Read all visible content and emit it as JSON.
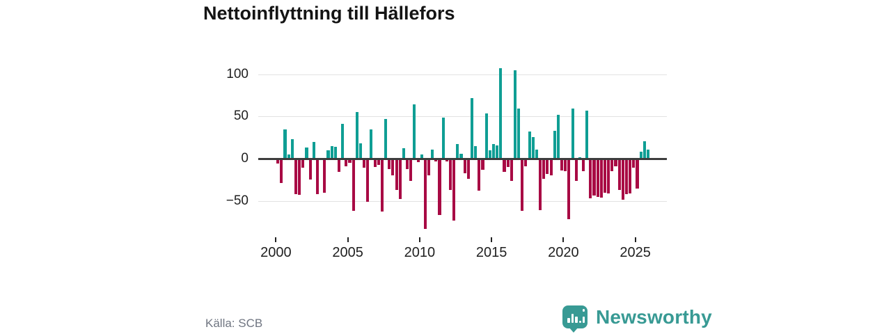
{
  "title": "Nettoinflyttning till Hällefors",
  "source": "Källa: SCB",
  "branding": {
    "logo_text": "Newsworthy",
    "brand_color": "#389a94"
  },
  "colors": {
    "positive": "#0f9e94",
    "negative": "#a80a44",
    "grid": "#e2e2e2",
    "zero_line": "#3d3d3d",
    "title_text": "#141414",
    "axis_text": "#1f1f1f",
    "source_text": "#6f7581"
  },
  "chart_data": {
    "type": "bar",
    "title": "Nettoinflyttning till Hällefors",
    "frequency": "quarterly",
    "x_start": {
      "year": 2000,
      "quarter": 1
    },
    "x_tick_labels": [
      "2000",
      "2005",
      "2010",
      "2015",
      "2020",
      "2025"
    ],
    "y_ticks": [
      100,
      50,
      0,
      -50
    ],
    "y_tick_labels": [
      "100",
      "50",
      "0",
      "−50"
    ],
    "ylim": [
      -90,
      115
    ],
    "grid": true,
    "legend": "none",
    "positive_color_meaning": "net in-migration (teal)",
    "negative_color_meaning": "net out-migration (crimson)",
    "values": [
      -6,
      -29,
      35,
      5,
      23,
      -42,
      -43,
      -11,
      13,
      -25,
      20,
      -42,
      1,
      -40,
      10,
      15,
      14,
      -16,
      41,
      -9,
      -5,
      -62,
      55,
      18,
      -11,
      -51,
      35,
      -10,
      -7,
      -63,
      47,
      -12,
      -20,
      -37,
      -48,
      12,
      -12,
      -26,
      64,
      -4,
      5,
      -83,
      -20,
      11,
      -3,
      -67,
      49,
      -3,
      -37,
      -73,
      17,
      6,
      -17,
      -24,
      72,
      15,
      -38,
      -13,
      54,
      10,
      17,
      16,
      107,
      -16,
      -10,
      -26,
      105,
      59,
      -62,
      -9,
      32,
      26,
      11,
      -61,
      -24,
      -18,
      -20,
      33,
      52,
      -14,
      -15,
      -72,
      59,
      -26,
      2,
      -15,
      57,
      -47,
      -44,
      -45,
      -46,
      -40,
      -41,
      -15,
      -9,
      -37,
      -49,
      -42,
      -41,
      -11,
      -35,
      8,
      21,
      11
    ]
  }
}
